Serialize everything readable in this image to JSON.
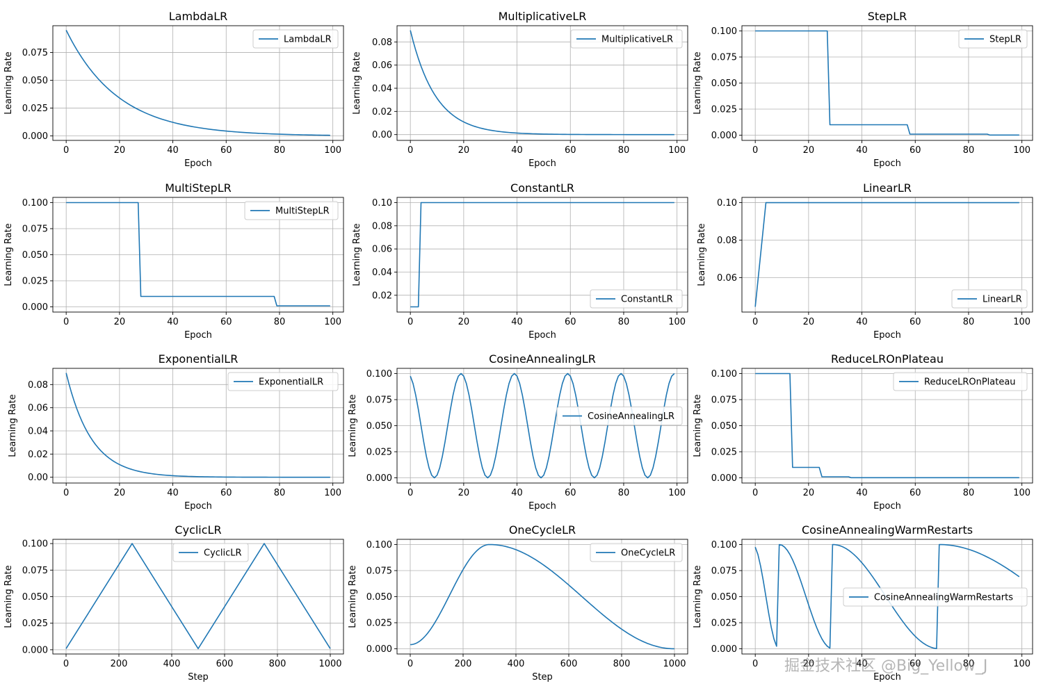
{
  "watermark": "掘金技术社区 @Big_Yellow_J",
  "colors": {
    "line": "#1f77b4",
    "grid": "#b0b0b0",
    "axis": "#000000"
  },
  "chart_data": [
    {
      "type": "line",
      "title": "LambdaLR",
      "series": [
        {
          "name": "LambdaLR",
          "formula": "0.1*0.95^(t+1)"
        }
      ],
      "xlabel": "Epoch",
      "ylabel": "Learning Rate",
      "xlim": [
        -5,
        104
      ],
      "ylim": [
        -0.004,
        0.099
      ],
      "xticks": [
        0,
        20,
        40,
        60,
        80,
        100
      ],
      "xtick_labels": [
        "0",
        "20",
        "40",
        "60",
        "80",
        "100"
      ],
      "yticks": [
        0,
        0.025,
        0.05,
        0.075
      ],
      "ytick_labels": [
        "0.000",
        "0.025",
        "0.050",
        "0.075"
      ],
      "legend": "top-right",
      "grid": true
    },
    {
      "type": "line",
      "title": "MultiplicativeLR",
      "series": [
        {
          "name": "MultiplicativeLR",
          "formula": "0.1*0.9^(t+1)"
        }
      ],
      "xlabel": "Epoch",
      "ylabel": "Learning Rate",
      "xlim": [
        -5,
        104
      ],
      "ylim": [
        -0.005,
        0.094
      ],
      "xticks": [
        0,
        20,
        40,
        60,
        80,
        100
      ],
      "xtick_labels": [
        "0",
        "20",
        "40",
        "60",
        "80",
        "100"
      ],
      "yticks": [
        0,
        0.02,
        0.04,
        0.06,
        0.08
      ],
      "ytick_labels": [
        "0.00",
        "0.02",
        "0.04",
        "0.06",
        "0.08"
      ],
      "legend": "top-right",
      "grid": true
    },
    {
      "type": "line",
      "title": "StepLR",
      "series": [
        {
          "name": "StepLR",
          "formula": "step",
          "values": [
            0.1,
            0.01,
            0.001,
            0.0001
          ],
          "milestones": [
            28,
            58,
            88
          ]
        }
      ],
      "xlabel": "Epoch",
      "ylabel": "Learning Rate",
      "xlim": [
        -5,
        104
      ],
      "ylim": [
        -0.005,
        0.105
      ],
      "xticks": [
        0,
        20,
        40,
        60,
        80,
        100
      ],
      "xtick_labels": [
        "0",
        "20",
        "40",
        "60",
        "80",
        "100"
      ],
      "yticks": [
        0,
        0.025,
        0.05,
        0.075,
        0.1
      ],
      "ytick_labels": [
        "0.000",
        "0.025",
        "0.050",
        "0.075",
        "0.100"
      ],
      "legend": "top-right",
      "grid": true
    },
    {
      "type": "line",
      "title": "MultiStepLR",
      "series": [
        {
          "name": "MultiStepLR",
          "formula": "step",
          "values": [
            0.1,
            0.01,
            0.001
          ],
          "milestones": [
            28,
            79
          ]
        }
      ],
      "xlabel": "Epoch",
      "ylabel": "Learning Rate",
      "xlim": [
        -5,
        104
      ],
      "ylim": [
        -0.005,
        0.105
      ],
      "xticks": [
        0,
        20,
        40,
        60,
        80,
        100
      ],
      "xtick_labels": [
        "0",
        "20",
        "40",
        "60",
        "80",
        "100"
      ],
      "yticks": [
        0,
        0.025,
        0.05,
        0.075,
        0.1
      ],
      "ytick_labels": [
        "0.000",
        "0.025",
        "0.050",
        "0.075",
        "0.100"
      ],
      "legend": "top-right",
      "grid": true
    },
    {
      "type": "line",
      "title": "ConstantLR",
      "series": [
        {
          "name": "ConstantLR",
          "formula": "points",
          "points": [
            [
              0,
              0.01
            ],
            [
              3,
              0.01
            ],
            [
              4,
              0.1
            ],
            [
              99,
              0.1
            ]
          ]
        }
      ],
      "xlabel": "Epoch",
      "ylabel": "Learning Rate",
      "xlim": [
        -5,
        104
      ],
      "ylim": [
        0.0055,
        0.1045
      ],
      "xticks": [
        0,
        20,
        40,
        60,
        80,
        100
      ],
      "xtick_labels": [
        "0",
        "20",
        "40",
        "60",
        "80",
        "100"
      ],
      "yticks": [
        0.02,
        0.04,
        0.06,
        0.08,
        0.1
      ],
      "ytick_labels": [
        "0.02",
        "0.04",
        "0.06",
        "0.08",
        "0.10"
      ],
      "legend": "bottom-right",
      "grid": true
    },
    {
      "type": "line",
      "title": "LinearLR",
      "series": [
        {
          "name": "LinearLR",
          "formula": "points",
          "points": [
            [
              0,
              0.0444
            ],
            [
              4,
              0.1
            ],
            [
              99,
              0.1
            ]
          ]
        }
      ],
      "xlabel": "Epoch",
      "ylabel": "Learning Rate",
      "xlim": [
        -5,
        104
      ],
      "ylim": [
        0.0416,
        0.1028
      ],
      "xticks": [
        0,
        20,
        40,
        60,
        80,
        100
      ],
      "xtick_labels": [
        "0",
        "20",
        "40",
        "60",
        "80",
        "100"
      ],
      "yticks": [
        0.06,
        0.08,
        0.1
      ],
      "ytick_labels": [
        "0.06",
        "0.08",
        "0.10"
      ],
      "legend": "bottom-right",
      "grid": true
    },
    {
      "type": "line",
      "title": "ExponentialLR",
      "series": [
        {
          "name": "ExponentialLR",
          "formula": "0.1*0.9^(t+1)"
        }
      ],
      "xlabel": "Epoch",
      "ylabel": "Learning Rate",
      "xlim": [
        -5,
        104
      ],
      "ylim": [
        -0.005,
        0.094
      ],
      "xticks": [
        0,
        20,
        40,
        60,
        80,
        100
      ],
      "xtick_labels": [
        "0",
        "20",
        "40",
        "60",
        "80",
        "100"
      ],
      "yticks": [
        0,
        0.02,
        0.04,
        0.06,
        0.08
      ],
      "ytick_labels": [
        "0.00",
        "0.02",
        "0.04",
        "0.06",
        "0.08"
      ],
      "legend": "top-right",
      "grid": true
    },
    {
      "type": "line",
      "title": "CosineAnnealingLR",
      "series": [
        {
          "name": "CosineAnnealingLR",
          "formula": "cosine",
          "T_max": 10,
          "eta_max": 0.1
        }
      ],
      "xlabel": "Epoch",
      "ylabel": "Learning Rate",
      "xlim": [
        -5,
        104
      ],
      "ylim": [
        -0.005,
        0.105
      ],
      "xticks": [
        0,
        20,
        40,
        60,
        80,
        100
      ],
      "xtick_labels": [
        "0",
        "20",
        "40",
        "60",
        "80",
        "100"
      ],
      "yticks": [
        0,
        0.025,
        0.05,
        0.075,
        0.1
      ],
      "ytick_labels": [
        "0.000",
        "0.025",
        "0.050",
        "0.075",
        "0.100"
      ],
      "legend": "center-right",
      "grid": true
    },
    {
      "type": "line",
      "title": "ReduceLROnPlateau",
      "series": [
        {
          "name": "ReduceLROnPlateau",
          "formula": "step",
          "values": [
            0.1,
            0.01,
            0.001,
            0.0001
          ],
          "milestones": [
            14,
            25,
            36
          ]
        }
      ],
      "xlabel": "Epoch",
      "ylabel": "Learning Rate",
      "xlim": [
        -5,
        104
      ],
      "ylim": [
        -0.005,
        0.105
      ],
      "xticks": [
        0,
        20,
        40,
        60,
        80,
        100
      ],
      "xtick_labels": [
        "0",
        "20",
        "40",
        "60",
        "80",
        "100"
      ],
      "yticks": [
        0,
        0.025,
        0.05,
        0.075,
        0.1
      ],
      "ytick_labels": [
        "0.000",
        "0.025",
        "0.050",
        "0.075",
        "0.100"
      ],
      "legend": "top-right",
      "grid": true
    },
    {
      "type": "line",
      "title": "CyclicLR",
      "series": [
        {
          "name": "CyclicLR",
          "formula": "points",
          "points": [
            [
              0,
              0.001
            ],
            [
              250,
              0.1
            ],
            [
              500,
              0.001
            ],
            [
              750,
              0.1
            ],
            [
              1000,
              0.001
            ]
          ]
        }
      ],
      "xlabel": "Step",
      "ylabel": "Learning Rate",
      "xlim": [
        -50,
        1050
      ],
      "ylim": [
        -0.004,
        0.104
      ],
      "xticks": [
        0,
        200,
        400,
        600,
        800,
        1000
      ],
      "xtick_labels": [
        "0",
        "200",
        "400",
        "600",
        "800",
        "1000"
      ],
      "yticks": [
        0,
        0.025,
        0.05,
        0.075,
        0.1
      ],
      "ytick_labels": [
        "0.000",
        "0.025",
        "0.050",
        "0.075",
        "0.100"
      ],
      "legend": "top-center",
      "grid": true
    },
    {
      "type": "line",
      "title": "OneCycleLR",
      "series": [
        {
          "name": "OneCycleLR",
          "formula": "onecycle",
          "max_lr": 0.1,
          "pct_start": 0.3,
          "start_lr": 0.004,
          "total": 1000
        }
      ],
      "xlabel": "Step",
      "ylabel": "Learning Rate",
      "xlim": [
        -50,
        1050
      ],
      "ylim": [
        -0.005,
        0.105
      ],
      "xticks": [
        0,
        200,
        400,
        600,
        800,
        1000
      ],
      "xtick_labels": [
        "0",
        "200",
        "400",
        "600",
        "800",
        "1000"
      ],
      "yticks": [
        0,
        0.025,
        0.05,
        0.075,
        0.1
      ],
      "ytick_labels": [
        "0.000",
        "0.025",
        "0.050",
        "0.075",
        "0.100"
      ],
      "legend": "top-right",
      "grid": true
    },
    {
      "type": "line",
      "title": "CosineAnnealingWarmRestarts",
      "series": [
        {
          "name": "CosineAnnealingWarmRestarts",
          "formula": "warmrestarts",
          "restarts": [
            9,
            29,
            69
          ],
          "T0": 10,
          "T_mult": 2,
          "eta_max": 0.1
        }
      ],
      "xlabel": "Epoch",
      "ylabel": "Learning Rate",
      "xlim": [
        -5,
        104
      ],
      "ylim": [
        -0.005,
        0.105
      ],
      "xticks": [
        0,
        20,
        40,
        60,
        80,
        100
      ],
      "xtick_labels": [
        "0",
        "20",
        "40",
        "60",
        "80",
        "100"
      ],
      "yticks": [
        0,
        0.025,
        0.05,
        0.075,
        0.1
      ],
      "ytick_labels": [
        "0.000",
        "0.025",
        "0.050",
        "0.075",
        "0.100"
      ],
      "legend": "center-right",
      "grid": true
    }
  ]
}
